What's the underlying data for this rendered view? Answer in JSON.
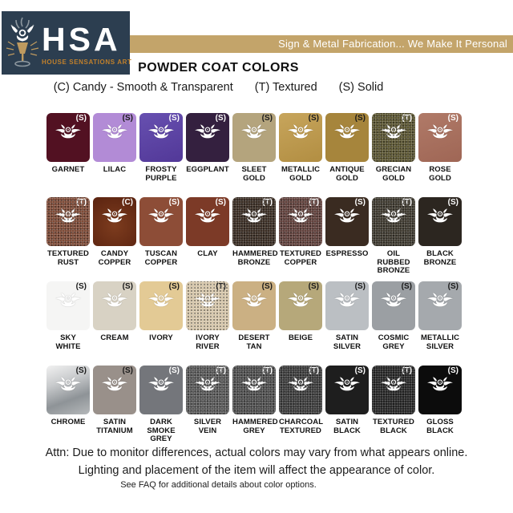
{
  "brand": {
    "acronym": "HSA",
    "name": "HOUSE SENSATIONS ART",
    "tagline": "Sign & Metal Fabrication... We Make It Personal"
  },
  "title": "POWDER COAT COLORS",
  "legend": {
    "candy": "(C) Candy - Smooth & Transparent",
    "textured": "(T) Textured",
    "solid": "(S) Solid"
  },
  "colors": {
    "banner_bg": "#C3A46A",
    "logo_bg": "#2C3E50",
    "logo_accent": "#C0802C",
    "page_bg": "#FFFFFF"
  },
  "grid": {
    "rows": [
      [
        {
          "name": "GARNET",
          "code": "(S)",
          "color": "#521122",
          "dark_letter": false
        },
        {
          "name": "LILAC",
          "code": "(S)",
          "color": "#B28BD6",
          "dark_letter": true
        },
        {
          "name": "FROSTY\nPURPLE",
          "code": "(S)",
          "color": "#5B3FA3",
          "stops": [
            "#6750B0",
            "#523898"
          ],
          "dark_letter": false
        },
        {
          "name": "EGGPLANT",
          "code": "(S)",
          "color": "#34203F",
          "dark_letter": false
        },
        {
          "name": "SLEET GOLD",
          "code": "(S)",
          "color": "#B4A47D",
          "dark_letter": true
        },
        {
          "name": "METALLIC\nGOLD",
          "code": "(S)",
          "color": "#C09C50",
          "stops": [
            "#C7A55C",
            "#B28E42"
          ],
          "dark_letter": true
        },
        {
          "name": "ANTIQUE\nGOLD",
          "code": "(S)",
          "color": "#A6853C",
          "dark_letter": true
        },
        {
          "name": "GRECIAN\nGOLD",
          "code": "(T)",
          "color": "#57512D",
          "textured": true,
          "dark_letter": false
        },
        {
          "name": "ROSE GOLD",
          "code": "(S)",
          "color": "#A8705F",
          "stops": [
            "#B07A68",
            "#9F6655"
          ],
          "dark_letter": false
        }
      ],
      [
        {
          "name": "TEXTURED\nRUST",
          "code": "(T)",
          "color": "#7B4733",
          "textured": true,
          "dark_letter": false
        },
        {
          "name": "CANDY\nCOPPER",
          "code": "(C)",
          "color": "#6B2D14",
          "radial": true,
          "stops": [
            "#7D3C1E",
            "#5A2310"
          ],
          "dark_letter": false
        },
        {
          "name": "TUSCAN\nCOPPER",
          "code": "(S)",
          "color": "#8D4D37",
          "dark_letter": false
        },
        {
          "name": "CLAY",
          "code": "(S)",
          "color": "#7C3A27",
          "dark_letter": false
        },
        {
          "name": "HAMMERED\nBRONZE",
          "code": "(T)",
          "color": "#36291F",
          "textured": true,
          "dark_letter": false
        },
        {
          "name": "TEXTURED\nCOPPER",
          "code": "(T)",
          "color": "#5E3D38",
          "textured": true,
          "dark_letter": false
        },
        {
          "name": "ESPRESSO",
          "code": "(S)",
          "color": "#3A2B21",
          "dark_letter": false
        },
        {
          "name": "OIL RUBBED\nBRONZE",
          "code": "(T)",
          "color": "#3A352B",
          "textured": true,
          "dark_letter": false
        },
        {
          "name": "BLACK\nBRONZE",
          "code": "(S)",
          "color": "#2C2620",
          "dark_letter": false
        }
      ],
      [
        {
          "name": "SKY\nWHITE",
          "code": "(S)",
          "color": "#F5F5F4",
          "dark_letter": true
        },
        {
          "name": "CREAM",
          "code": "(S)",
          "color": "#D8D2C4",
          "dark_letter": true
        },
        {
          "name": "IVORY",
          "code": "(S)",
          "color": "#E3CA95",
          "dark_letter": true
        },
        {
          "name": "IVORY\nRIVER",
          "code": "(T)",
          "color": "#D6C6AA",
          "textured": true,
          "dark_letter": true
        },
        {
          "name": "DESERT\nTAN",
          "code": "(S)",
          "color": "#CBB083",
          "dark_letter": true
        },
        {
          "name": "BEIGE",
          "code": "(S)",
          "color": "#B6A87A",
          "dark_letter": true
        },
        {
          "name": "SATIN\nSILVER",
          "code": "(S)",
          "color": "#BBBFC3",
          "dark_letter": true
        },
        {
          "name": "COSMIC\nGREY",
          "code": "(S)",
          "color": "#9B9FA3",
          "dark_letter": true
        },
        {
          "name": "METALLIC\nSILVER",
          "code": "(S)",
          "color": "#A5A9AD",
          "dark_letter": true
        }
      ],
      [
        {
          "name": "CHROME",
          "code": "(S)",
          "color": "#C9CBCD",
          "stops": [
            "#F1F1F1",
            "#C9CBCD",
            "#8E9397",
            "#B5B8BA"
          ],
          "dark_letter": true
        },
        {
          "name": "SATIN\nTITANIUM",
          "code": "(S)",
          "color": "#99908A",
          "dark_letter": true
        },
        {
          "name": "DARK SMOKE\nGREY",
          "code": "(S)",
          "color": "#74767B",
          "dark_letter": false
        },
        {
          "name": "SILVER\nVEIN",
          "code": "(T)",
          "color": "#565656",
          "textured": true,
          "dark_letter": false
        },
        {
          "name": "HAMMERED\nGREY",
          "code": "(T)",
          "color": "#4B4B4B",
          "textured": true,
          "dark_letter": false
        },
        {
          "name": "CHARCOAL\nTEXTURED",
          "code": "(T)",
          "color": "#383838",
          "textured": true,
          "dark_letter": false
        },
        {
          "name": "SATIN\nBLACK",
          "code": "(S)",
          "color": "#1E1E1E",
          "dark_letter": false
        },
        {
          "name": "TEXTURED\nBLACK",
          "code": "(T)",
          "color": "#212121",
          "textured": true,
          "dark_letter": false
        },
        {
          "name": "GLOSS\nBLACK",
          "code": "(S)",
          "color": "#0C0C0C",
          "dark_letter": false
        }
      ]
    ]
  },
  "footer": {
    "attention": "Attn: Due to monitor differences, actual colors may vary from what appears online.\nLighting and placement of the item will affect the appearance of color.",
    "faq": "See FAQ for additional details about color options."
  }
}
